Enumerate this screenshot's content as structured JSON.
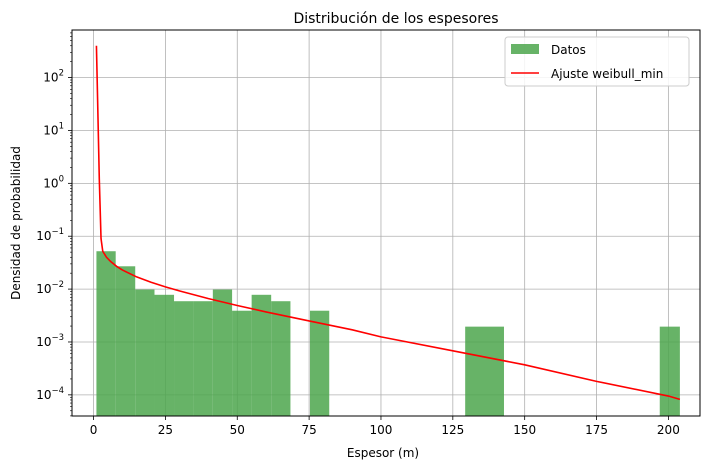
{
  "chart_data": {
    "type": "bar",
    "title": "Distribución de los espesores",
    "xlabel": "Espesor (m)",
    "ylabel": "Densidad de probabilidad",
    "xlim": [
      -7.5,
      211
    ],
    "ylim_log10": [
      -4.4,
      2.9
    ],
    "yscale": "log",
    "grid": true,
    "legend_position": "top-right",
    "x_ticks": [
      0,
      25,
      50,
      75,
      100,
      125,
      150,
      175,
      200
    ],
    "x_tick_labels": [
      "0",
      "25",
      "50",
      "75",
      "100",
      "125",
      "150",
      "175",
      "200"
    ],
    "y_tick_exponents": [
      -4,
      -3,
      -2,
      -1,
      0,
      1,
      2
    ],
    "y_tick_labels": [
      {
        "base": "10",
        "exp": "−4"
      },
      {
        "base": "10",
        "exp": "−3"
      },
      {
        "base": "10",
        "exp": "−2"
      },
      {
        "base": "10",
        "exp": "−1"
      },
      {
        "base": "10",
        "exp": "0"
      },
      {
        "base": "10",
        "exp": "1"
      },
      {
        "base": "10",
        "exp": "2"
      }
    ],
    "histogram": {
      "name": "Datos",
      "color": "#4ca64c",
      "bins": [
        {
          "x0": 1.0,
          "x1": 7.7,
          "value": 0.052
        },
        {
          "x0": 7.7,
          "x1": 14.5,
          "value": 0.027
        },
        {
          "x0": 14.5,
          "x1": 21.2,
          "value": 0.0098
        },
        {
          "x0": 21.2,
          "x1": 28.0,
          "value": 0.0078
        },
        {
          "x0": 28.0,
          "x1": 34.8,
          "value": 0.0059
        },
        {
          "x0": 34.8,
          "x1": 41.5,
          "value": 0.0059
        },
        {
          "x0": 41.5,
          "x1": 48.2,
          "value": 0.0098
        },
        {
          "x0": 48.2,
          "x1": 55.0,
          "value": 0.0039
        },
        {
          "x0": 55.0,
          "x1": 61.8,
          "value": 0.0078
        },
        {
          "x0": 61.8,
          "x1": 68.5,
          "value": 0.0059
        },
        {
          "x0": 75.3,
          "x1": 82.0,
          "value": 0.0039
        },
        {
          "x0": 129.3,
          "x1": 142.8,
          "value": 0.00195
        },
        {
          "x0": 197.0,
          "x1": 204.0,
          "value": 0.00195
        }
      ]
    },
    "fit_line": {
      "name": "Ajuste weibull_min",
      "color": "#ff0000",
      "points": [
        [
          1.0,
          400
        ],
        [
          1.4,
          40
        ],
        [
          2.0,
          1.2
        ],
        [
          2.6,
          0.09
        ],
        [
          3.2,
          0.052
        ],
        [
          4.5,
          0.04
        ],
        [
          6,
          0.033
        ],
        [
          8,
          0.027
        ],
        [
          10,
          0.023
        ],
        [
          15,
          0.017
        ],
        [
          20,
          0.0135
        ],
        [
          25,
          0.011
        ],
        [
          30,
          0.0092
        ],
        [
          40,
          0.0066
        ],
        [
          50,
          0.0049
        ],
        [
          60,
          0.0037
        ],
        [
          75,
          0.0025
        ],
        [
          90,
          0.0017
        ],
        [
          100,
          0.00125
        ],
        [
          125,
          0.00068
        ],
        [
          150,
          0.00037
        ],
        [
          175,
          0.00018
        ],
        [
          200,
          9.5e-05
        ],
        [
          204,
          8.2e-05
        ]
      ]
    }
  }
}
